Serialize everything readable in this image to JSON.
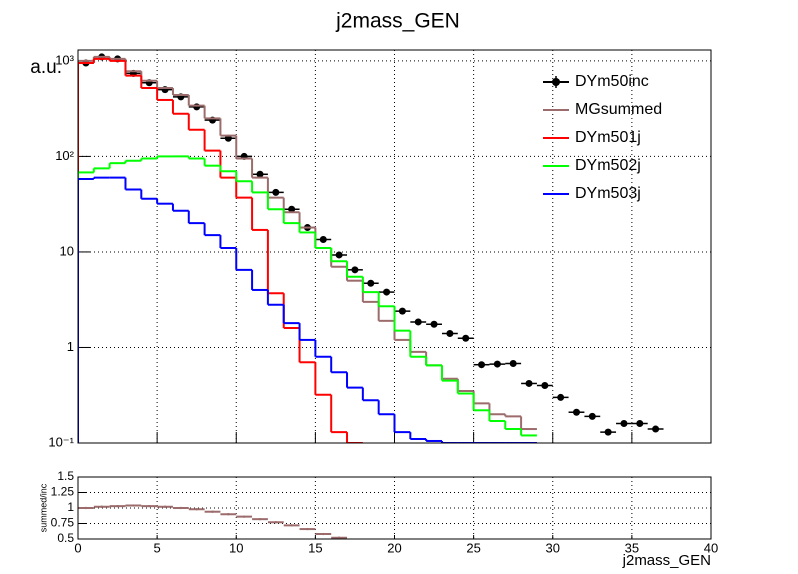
{
  "chart_data": [
    {
      "type": "histogram",
      "title": "j2mass_GEN",
      "ylabel": "a.u.",
      "log_y": true,
      "grid": true,
      "bins": [
        0,
        1,
        2,
        3,
        4,
        5,
        6,
        7,
        8,
        9,
        10,
        11,
        12,
        13,
        14,
        15,
        16,
        17,
        18,
        19,
        20,
        21,
        22,
        23,
        24,
        25,
        26,
        27,
        28,
        29,
        30,
        31,
        32,
        33,
        34,
        35,
        36,
        37,
        38,
        39,
        40
      ],
      "xlim": [
        0,
        40
      ],
      "xticks": [
        0,
        5,
        10,
        15,
        20,
        25,
        30,
        35,
        40
      ],
      "ylim": [
        0.1,
        1300
      ],
      "yticks": [
        {
          "value": 0.1,
          "label": "10⁻¹"
        },
        1,
        10,
        {
          "value": 100,
          "label": "10²"
        },
        {
          "value": 1000,
          "label": "10³"
        }
      ],
      "legend": "top-right",
      "series": [
        {
          "name": "DYm50inc",
          "color": "#000000",
          "draw": "points",
          "values": [
            950,
            1100,
            1050,
            740,
            590,
            500,
            420,
            330,
            240,
            155,
            100,
            65,
            42,
            28,
            18,
            13.5,
            9.3,
            6.5,
            4.7,
            3.8,
            2.4,
            1.85,
            1.75,
            1.4,
            1.25,
            0.66,
            0.67,
            0.68,
            0.42,
            0.4,
            0.3,
            0.21,
            0.19,
            0.13,
            0.16,
            0.16,
            0.14,
            null,
            null,
            null
          ]
        },
        {
          "name": "MGsummed",
          "color": "#9c6b6b",
          "draw": "step",
          "values": [
            1000,
            1100,
            1050,
            780,
            620,
            520,
            440,
            340,
            250,
            165,
            95,
            60,
            37,
            26,
            18,
            11,
            7,
            5,
            3,
            1.9,
            1.2,
            0.9,
            0.65,
            0.47,
            0.35,
            0.26,
            0.2,
            0.19,
            0.14,
            null,
            null,
            null,
            null,
            null,
            null,
            null,
            null,
            null,
            null,
            null
          ]
        },
        {
          "name": "DYm501j",
          "color": "#ff0000",
          "draw": "step",
          "values": [
            950,
            1050,
            1000,
            700,
            520,
            390,
            280,
            190,
            115,
            60,
            37,
            17,
            3.7,
            1.6,
            0.7,
            0.32,
            0.13,
            0.1,
            null,
            null,
            null,
            null,
            null,
            null,
            null,
            null,
            null,
            null,
            null,
            null,
            null,
            null,
            null,
            null,
            null,
            null,
            null,
            null,
            null,
            null
          ]
        },
        {
          "name": "DYm502j",
          "color": "#00ff00",
          "draw": "step",
          "values": [
            68,
            75,
            85,
            90,
            95,
            100,
            100,
            95,
            80,
            70,
            55,
            42,
            28,
            20,
            16,
            11,
            8,
            5.5,
            3.8,
            2.7,
            1.5,
            0.8,
            0.65,
            0.45,
            0.33,
            0.22,
            0.17,
            0.14,
            0.12,
            null,
            null,
            null,
            null,
            null,
            null,
            null,
            null,
            null,
            null,
            null
          ]
        },
        {
          "name": "DYm503j",
          "color": "#0000ff",
          "draw": "step",
          "values": [
            58,
            60,
            60,
            45,
            36,
            32,
            27,
            20,
            15,
            11,
            6.5,
            4,
            2.8,
            1.8,
            1.2,
            0.8,
            0.55,
            0.38,
            0.28,
            0.2,
            0.13,
            0.11,
            0.105,
            0.1,
            0.1,
            0.1,
            0.1,
            0.1,
            0.1,
            null,
            null,
            null,
            null,
            null,
            null,
            null,
            null,
            null,
            null,
            null
          ]
        }
      ]
    },
    {
      "type": "histogram",
      "xlabel": "j2mass_GEN",
      "ylabel": "summed/inc",
      "grid": true,
      "draw": "points",
      "color": "#9c6b6b",
      "bins": [
        0,
        1,
        2,
        3,
        4,
        5,
        6,
        7,
        8,
        9,
        10,
        11,
        12,
        13,
        14,
        15,
        16,
        17,
        18,
        19,
        20,
        21,
        22,
        23,
        24,
        25,
        26,
        27,
        28,
        29,
        30,
        31,
        32,
        33,
        34,
        35,
        36,
        37,
        38,
        39,
        40
      ],
      "xlim": [
        0,
        40
      ],
      "xticks": [
        0,
        5,
        10,
        15,
        20,
        25,
        30,
        35,
        40
      ],
      "ylim": [
        0.5,
        1.5
      ],
      "yticks": [
        0.5,
        0.75,
        1,
        1.25,
        1.5
      ],
      "values": [
        1.0,
        1.02,
        1.03,
        1.04,
        1.03,
        1.02,
        1.0,
        0.98,
        0.94,
        0.9,
        0.86,
        0.82,
        0.77,
        0.72,
        0.66,
        0.58,
        0.52,
        null,
        null,
        null,
        null,
        null,
        null,
        null,
        null,
        null,
        null,
        null,
        null,
        null,
        null,
        null,
        null,
        null,
        null,
        null,
        null,
        null,
        null,
        null
      ]
    }
  ]
}
